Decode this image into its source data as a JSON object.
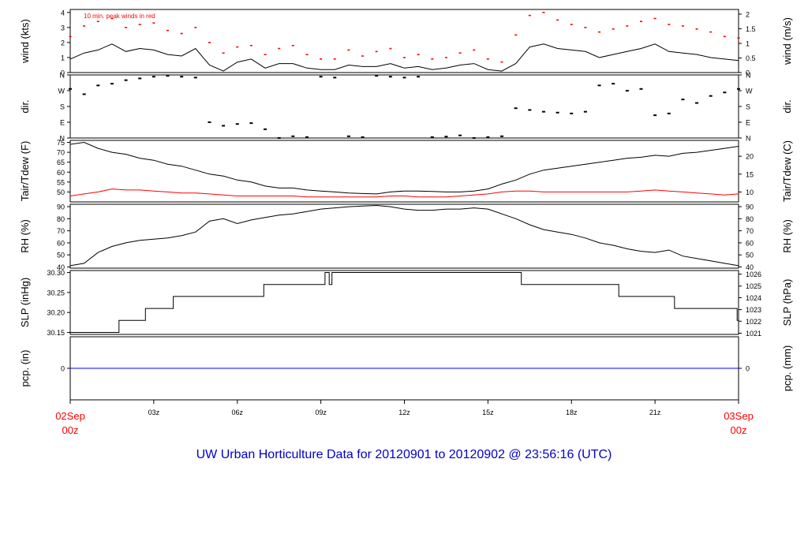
{
  "colors": {
    "axis": "#000000",
    "series": "#000000",
    "peak": "#ff0000",
    "dew": "#ff0000",
    "precip": "#0000ff",
    "title": "#0000cc",
    "date_label": "#ff0000"
  },
  "title": "UW Urban Horticulture Data for 20120901  to  20120902 @ 23:56:16  (UTC)",
  "x_axis": {
    "ticks": [
      {
        "hour": 0,
        "label": ""
      },
      {
        "hour": 3,
        "label": "03z"
      },
      {
        "hour": 6,
        "label": "06z"
      },
      {
        "hour": 9,
        "label": "09z"
      },
      {
        "hour": 12,
        "label": "12z"
      },
      {
        "hour": 15,
        "label": "15z"
      },
      {
        "hour": 18,
        "label": "18z"
      },
      {
        "hour": 21,
        "label": "21z"
      },
      {
        "hour": 24,
        "label": ""
      }
    ],
    "start_label": [
      "02Sep",
      "00z"
    ],
    "end_label": [
      "03Sep",
      "00z"
    ]
  },
  "chart_data": [
    {
      "id": "wind",
      "type": "line",
      "ylabel": "wind (kts)",
      "ylabel_right": "wind (m/s)",
      "ylim": [
        0,
        4.2
      ],
      "yticks": [
        0,
        1,
        2,
        3,
        4
      ],
      "right_ticks": [
        {
          "value": 0,
          "label": "0"
        },
        {
          "value": 0.97,
          "label": "0.5"
        },
        {
          "value": 1.94,
          "label": "1"
        },
        {
          "value": 2.92,
          "label": "1.5"
        },
        {
          "value": 3.89,
          "label": "2"
        }
      ],
      "annotation": "10 min. peak winds in red",
      "series": [
        {
          "role": "speed",
          "x": [
            0,
            0.5,
            1,
            1.5,
            2,
            2.5,
            3,
            3.5,
            4,
            4.5,
            5,
            5.5,
            6,
            6.5,
            7,
            7.5,
            8,
            8.5,
            9,
            9.5,
            10,
            10.5,
            11,
            11.5,
            12,
            12.5,
            13,
            13.5,
            14,
            14.5,
            15,
            15.5,
            16,
            16.5,
            17,
            17.5,
            18,
            18.5,
            19,
            19.5,
            20,
            20.5,
            21,
            21.5,
            22,
            22.5,
            23,
            23.5,
            24
          ],
          "values": [
            0.9,
            1.3,
            1.5,
            1.9,
            1.4,
            1.6,
            1.5,
            1.2,
            1.1,
            1.6,
            0.5,
            0.1,
            0.7,
            0.9,
            0.3,
            0.6,
            0.6,
            0.3,
            0.2,
            0.2,
            0.5,
            0.4,
            0.4,
            0.6,
            0.3,
            0.4,
            0.2,
            0.3,
            0.5,
            0.6,
            0.2,
            0.1,
            0.6,
            1.7,
            1.9,
            1.6,
            1.5,
            1.4,
            1.0,
            1.2,
            1.4,
            1.6,
            1.9,
            1.4,
            1.3,
            1.2,
            1.0,
            0.9,
            0.8
          ]
        },
        {
          "role": "peak",
          "x": [
            0,
            0.5,
            1,
            1.5,
            2,
            2.5,
            3,
            3.5,
            4,
            4.5,
            5,
            5.5,
            6,
            6.5,
            7,
            7.5,
            8,
            8.5,
            9,
            9.5,
            10,
            10.5,
            11,
            11.5,
            12,
            12.5,
            13,
            13.5,
            14,
            14.5,
            15,
            15.5,
            16,
            16.5,
            17,
            17.5,
            18,
            18.5,
            19,
            19.5,
            20,
            20.5,
            21,
            21.5,
            22,
            22.5,
            23,
            23.5,
            24
          ],
          "values": [
            2.4,
            3.1,
            3.4,
            3.6,
            3.0,
            3.2,
            3.3,
            2.8,
            2.6,
            3.0,
            2.0,
            1.3,
            1.7,
            1.8,
            1.2,
            1.6,
            1.8,
            1.2,
            0.9,
            0.9,
            1.5,
            1.1,
            1.4,
            1.6,
            1.0,
            1.2,
            0.9,
            1.0,
            1.3,
            1.5,
            0.9,
            0.7,
            2.5,
            3.8,
            4.0,
            3.5,
            3.2,
            3.0,
            2.7,
            2.9,
            3.1,
            3.4,
            3.6,
            3.2,
            3.1,
            2.9,
            2.7,
            2.4,
            2.3
          ]
        }
      ]
    },
    {
      "id": "dir",
      "type": "scatter",
      "ylabel": "dir.",
      "ylabel_right": "dir.",
      "ylim": [
        0,
        360
      ],
      "yticks": [
        {
          "value": 0,
          "label": "N"
        },
        {
          "value": 90,
          "label": "E"
        },
        {
          "value": 180,
          "label": "S"
        },
        {
          "value": 270,
          "label": "W"
        },
        {
          "value": 360,
          "label": "N"
        }
      ],
      "series": [
        {
          "x": [
            0,
            0.5,
            1,
            1.5,
            2,
            2.5,
            3,
            3.5,
            4,
            4.5,
            5,
            5.5,
            6,
            6.5,
            7,
            7.5,
            8,
            8.5,
            9,
            9.5,
            10,
            10.5,
            11,
            11.5,
            12,
            12.5,
            13,
            13.5,
            14,
            14.5,
            15,
            15.5,
            16,
            16.5,
            17,
            17.5,
            18,
            18.5,
            19,
            19.5,
            20,
            20.5,
            21,
            21.5,
            22,
            22.5,
            23,
            23.5,
            24
          ],
          "values": [
            280,
            250,
            300,
            310,
            330,
            340,
            350,
            355,
            350,
            345,
            90,
            70,
            80,
            85,
            50,
            0,
            10,
            5,
            350,
            345,
            10,
            5,
            355,
            350,
            345,
            350,
            5,
            8,
            15,
            0,
            5,
            10,
            170,
            160,
            150,
            145,
            140,
            150,
            300,
            310,
            270,
            280,
            130,
            140,
            220,
            200,
            240,
            260,
            280
          ]
        }
      ]
    },
    {
      "id": "temp",
      "type": "line",
      "ylabel": "Tair/Tdew (F)",
      "ylabel_right": "Tair/Tdew (C)",
      "ylim": [
        45,
        76
      ],
      "yticks": [
        50,
        55,
        60,
        65,
        70,
        75
      ],
      "right_ticks": [
        {
          "value": 50,
          "label": "10"
        },
        {
          "value": 59,
          "label": "15"
        },
        {
          "value": 68,
          "label": "20"
        }
      ],
      "series": [
        {
          "role": "air",
          "x": [
            0,
            0.5,
            1,
            1.5,
            2,
            2.5,
            3,
            3.5,
            4,
            4.5,
            5,
            5.5,
            6,
            6.5,
            7,
            7.5,
            8,
            8.5,
            9,
            9.5,
            10,
            10.5,
            11,
            11.5,
            12,
            12.5,
            13,
            13.5,
            14,
            14.5,
            15,
            15.5,
            16,
            16.5,
            17,
            17.5,
            18,
            18.5,
            19,
            19.5,
            20,
            20.5,
            21,
            21.5,
            22,
            22.5,
            23,
            23.5,
            24
          ],
          "values": [
            74,
            75,
            72,
            70,
            69,
            67,
            66,
            64,
            63,
            61,
            59,
            58,
            56,
            55,
            53,
            52,
            52,
            51,
            50.5,
            50,
            49.5,
            49.2,
            49,
            50,
            50.5,
            50.5,
            50.3,
            50,
            50,
            50.5,
            51.5,
            54,
            56,
            59,
            61,
            62,
            63,
            64,
            65,
            66,
            67,
            67.5,
            68.5,
            68,
            69.5,
            70,
            71,
            72,
            73
          ]
        },
        {
          "role": "dew",
          "x": [
            0,
            0.5,
            1,
            1.5,
            2,
            2.5,
            3,
            3.5,
            4,
            4.5,
            5,
            5.5,
            6,
            6.5,
            7,
            7.5,
            8,
            8.5,
            9,
            9.5,
            10,
            10.5,
            11,
            11.5,
            12,
            12.5,
            13,
            13.5,
            14,
            14.5,
            15,
            15.5,
            16,
            16.5,
            17,
            17.5,
            18,
            18.5,
            19,
            19.5,
            20,
            20.5,
            21,
            21.5,
            22,
            22.5,
            23,
            23.5,
            24
          ],
          "values": [
            48,
            49,
            50,
            51.5,
            51,
            51,
            50.5,
            50,
            49.5,
            49.5,
            49,
            48.5,
            48,
            48,
            48,
            48,
            48,
            47.5,
            47.5,
            47.5,
            47.5,
            47.5,
            47.5,
            48,
            48,
            47.5,
            47.5,
            47.5,
            48,
            48.5,
            49,
            50,
            50.5,
            50.5,
            50,
            50,
            50,
            50,
            50,
            50,
            50,
            50.5,
            51,
            50.5,
            50,
            49.5,
            49,
            48.5,
            49
          ]
        }
      ]
    },
    {
      "id": "rh",
      "type": "line",
      "ylabel": "RH (%)",
      "ylabel_right": "RH (%)",
      "ylim": [
        39,
        92
      ],
      "yticks": [
        40,
        50,
        60,
        70,
        80,
        90
      ],
      "series": [
        {
          "x": [
            0,
            0.5,
            1,
            1.5,
            2,
            2.5,
            3,
            3.5,
            4,
            4.5,
            5,
            5.5,
            6,
            6.5,
            7,
            7.5,
            8,
            8.5,
            9,
            9.5,
            10,
            10.5,
            11,
            11.5,
            12,
            12.5,
            13,
            13.5,
            14,
            14.5,
            15,
            15.5,
            16,
            16.5,
            17,
            17.5,
            18,
            18.5,
            19,
            19.5,
            20,
            20.5,
            21,
            21.5,
            22,
            22.5,
            23,
            23.5,
            24
          ],
          "values": [
            41,
            43,
            52,
            57,
            60,
            62,
            63,
            64,
            66,
            69,
            78,
            80,
            76,
            79,
            81,
            83,
            84,
            86,
            88,
            89,
            90,
            90.5,
            91,
            90,
            88,
            87,
            87,
            88,
            88,
            89,
            88,
            84,
            80,
            75,
            71,
            69,
            67,
            64,
            60,
            58,
            55,
            53,
            52,
            54,
            49,
            47,
            45,
            43,
            41
          ]
        }
      ]
    },
    {
      "id": "slp",
      "type": "line",
      "ylabel": "SLP (inHg)",
      "ylabel_right": "SLP (hPa)",
      "ylim": [
        30.145,
        30.305
      ],
      "yticks": [
        {
          "value": 30.15,
          "label": "30.15"
        },
        {
          "value": 30.2,
          "label": "30.20"
        },
        {
          "value": 30.25,
          "label": "30.25"
        },
        {
          "value": 30.3,
          "label": "30.30"
        }
      ],
      "right_ticks": [
        {
          "value": 30.148,
          "label": "1021"
        },
        {
          "value": 30.178,
          "label": "1022"
        },
        {
          "value": 30.207,
          "label": "1023"
        },
        {
          "value": 30.237,
          "label": "1024"
        },
        {
          "value": 30.266,
          "label": "1025"
        },
        {
          "value": 30.296,
          "label": "1026"
        }
      ],
      "series": [
        {
          "x": [
            0,
            1.75,
            1.75,
            2.7,
            2.7,
            3.7,
            3.7,
            6.95,
            6.95,
            9.15,
            9.15,
            9.3,
            9.3,
            9.4,
            9.4,
            16.2,
            16.2,
            19.7,
            19.7,
            21.7,
            21.7,
            23.95,
            23.95,
            24
          ],
          "values": [
            30.15,
            30.15,
            30.18,
            30.18,
            30.21,
            30.21,
            30.24,
            30.24,
            30.27,
            30.27,
            30.3,
            30.3,
            30.27,
            30.27,
            30.3,
            30.3,
            30.27,
            30.27,
            30.24,
            30.24,
            30.21,
            30.21,
            30.18,
            30.18
          ]
        }
      ]
    },
    {
      "id": "pcp",
      "type": "line",
      "ylabel": "pcp. (in)",
      "ylabel_right": "pcp. (mm)",
      "ylim": [
        -1,
        1
      ],
      "yticks": [
        0
      ],
      "right_ticks": [
        {
          "value": 0,
          "label": "0"
        }
      ],
      "series": [
        {
          "x": [
            0,
            24
          ],
          "values": [
            0,
            0
          ]
        }
      ]
    }
  ]
}
